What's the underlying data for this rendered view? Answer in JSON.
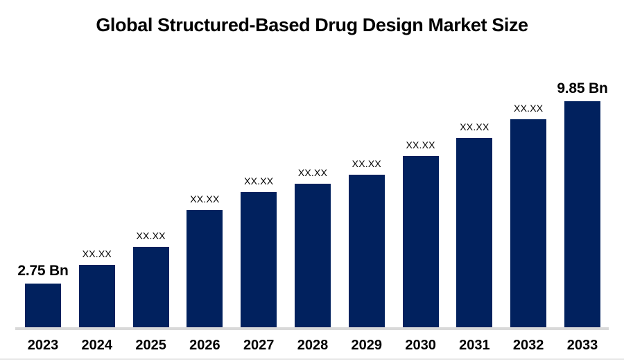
{
  "title": "Global Structured-Based Drug Design Market Size",
  "chart_data": {
    "type": "bar",
    "title": "Global Structured-Based Drug Design Market Size",
    "xlabel": "",
    "ylabel": "",
    "unit": "Bn",
    "grid": false,
    "legend": false,
    "categories": [
      "2023",
      "2024",
      "2025",
      "2026",
      "2027",
      "2028",
      "2029",
      "2030",
      "2031",
      "2032",
      "2033"
    ],
    "bar_color": "#01215E",
    "axis_line_color": "#d9d9d9",
    "bottom_line_color": "#e8e8e8",
    "bars": [
      {
        "year": "2023",
        "label": "2.75 Bn",
        "value": 2.75,
        "height_frac": 0.193,
        "emphasis": true
      },
      {
        "year": "2024",
        "label": "XX.XX",
        "value": null,
        "height_frac": 0.276,
        "emphasis": false
      },
      {
        "year": "2025",
        "label": "XX.XX",
        "value": null,
        "height_frac": 0.356,
        "emphasis": false
      },
      {
        "year": "2026",
        "label": "XX.XX",
        "value": null,
        "height_frac": 0.518,
        "emphasis": false
      },
      {
        "year": "2027",
        "label": "XX.XX",
        "value": null,
        "height_frac": 0.598,
        "emphasis": false
      },
      {
        "year": "2028",
        "label": "XX.XX",
        "value": null,
        "height_frac": 0.635,
        "emphasis": false
      },
      {
        "year": "2029",
        "label": "XX.XX",
        "value": null,
        "height_frac": 0.675,
        "emphasis": false
      },
      {
        "year": "2030",
        "label": "XX.XX",
        "value": null,
        "height_frac": 0.758,
        "emphasis": false
      },
      {
        "year": "2031",
        "label": "XX.XX",
        "value": null,
        "height_frac": 0.837,
        "emphasis": false
      },
      {
        "year": "2032",
        "label": "XX.XX",
        "value": null,
        "height_frac": 0.92,
        "emphasis": false
      },
      {
        "year": "2033",
        "label": "9.85 Bn",
        "value": 9.85,
        "height_frac": 1.0,
        "emphasis": true
      }
    ]
  }
}
